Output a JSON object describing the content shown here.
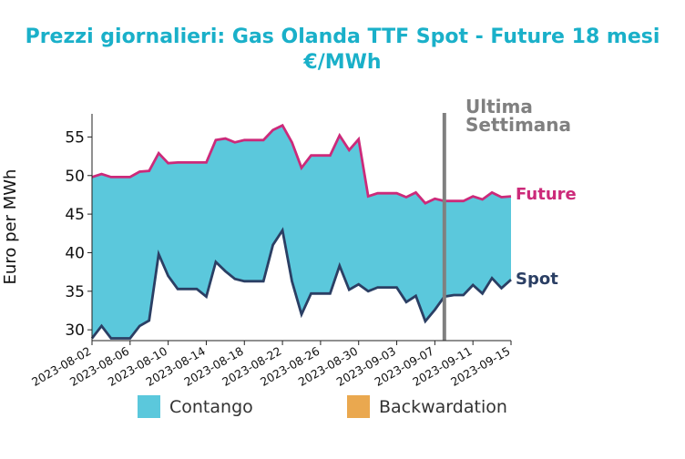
{
  "chart_data": {
    "type": "area",
    "title_line1": "Prezzi giornalieri: Gas Olanda TTF Spot - Future 18 mesi",
    "title_line2": "€/MWh",
    "xlabel": "",
    "ylabel": "Euro per MWh",
    "ylim": [
      28.6,
      58.0
    ],
    "yticks": [
      30,
      35,
      40,
      45,
      50,
      55
    ],
    "xticks": [
      "2023-08-02",
      "2023-08-06",
      "2023-08-10",
      "2023-08-14",
      "2023-08-18",
      "2023-08-22",
      "2023-08-26",
      "2023-08-30",
      "2023-09-03",
      "2023-09-07",
      "2023-09-11",
      "2023-09-15"
    ],
    "x": [
      "2023-08-02",
      "2023-08-03",
      "2023-08-04",
      "2023-08-05",
      "2023-08-06",
      "2023-08-07",
      "2023-08-08",
      "2023-08-09",
      "2023-08-10",
      "2023-08-11",
      "2023-08-12",
      "2023-08-13",
      "2023-08-14",
      "2023-08-15",
      "2023-08-16",
      "2023-08-17",
      "2023-08-18",
      "2023-08-19",
      "2023-08-20",
      "2023-08-21",
      "2023-08-22",
      "2023-08-23",
      "2023-08-24",
      "2023-08-25",
      "2023-08-26",
      "2023-08-27",
      "2023-08-28",
      "2023-08-29",
      "2023-08-30",
      "2023-08-31",
      "2023-09-01",
      "2023-09-02",
      "2023-09-03",
      "2023-09-04",
      "2023-09-05",
      "2023-09-06",
      "2023-09-07",
      "2023-09-08",
      "2023-09-09",
      "2023-09-10",
      "2023-09-11",
      "2023-09-12",
      "2023-09-13",
      "2023-09-14",
      "2023-09-15"
    ],
    "series": [
      {
        "name": "Future",
        "color": "#cc2a7a",
        "values": [
          49.8,
          50.2,
          49.8,
          49.8,
          49.8,
          50.5,
          50.6,
          52.9,
          51.6,
          51.7,
          51.7,
          51.7,
          51.7,
          54.6,
          54.8,
          54.3,
          54.6,
          54.6,
          54.6,
          55.9,
          56.5,
          54.3,
          51.0,
          52.6,
          52.6,
          52.6,
          55.2,
          53.3,
          54.7,
          47.3,
          47.7,
          47.7,
          47.7,
          47.2,
          47.8,
          46.4,
          47.0,
          46.7,
          46.7,
          46.7,
          47.3,
          46.9,
          47.8,
          47.2,
          47.3
        ]
      },
      {
        "name": "Spot",
        "color": "#2b3f64",
        "values": [
          28.9,
          30.5,
          28.9,
          28.9,
          28.9,
          30.5,
          31.2,
          39.8,
          37.0,
          35.3,
          35.3,
          35.3,
          34.3,
          38.8,
          37.6,
          36.6,
          36.3,
          36.3,
          36.3,
          41.0,
          42.9,
          36.3,
          32.0,
          34.7,
          34.7,
          34.7,
          38.3,
          35.2,
          35.9,
          35.0,
          35.5,
          35.5,
          35.5,
          33.6,
          34.4,
          31.1,
          32.6,
          34.3,
          34.5,
          34.5,
          35.8,
          34.7,
          36.7,
          35.4,
          36.5
        ]
      }
    ],
    "fill_contango_color": "#5bc8dc",
    "fill_backwardation_color": "#eaa84f",
    "vline": {
      "x": "2023-09-08",
      "label_line1": "Ultima",
      "label_line2": "Settimana",
      "color": "#808080"
    },
    "legend": [
      {
        "label": "Contango",
        "color": "#5bc8dc"
      },
      {
        "label": "Backwardation",
        "color": "#eaa84f"
      }
    ],
    "title_color": "#1ab0c9",
    "grid": false,
    "legend_position": "bottom-center"
  }
}
